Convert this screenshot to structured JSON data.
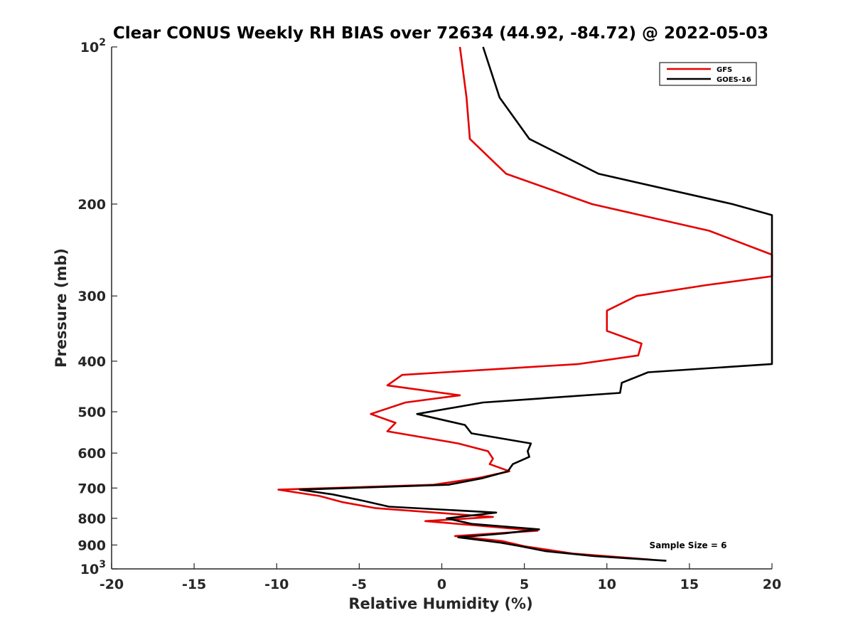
{
  "chart_data": {
    "type": "line",
    "title": "Clear CONUS Weekly RH BIAS over 72634 (44.92, -84.72) @ 2022-05-03",
    "xlabel": "Relative Humidity (%)",
    "ylabel": "Pressure (mb)",
    "xlim": [
      -20,
      20
    ],
    "ylim": [
      100,
      1000
    ],
    "y_scale": "log",
    "y_reversed": true,
    "grid": false,
    "x_ticks": [
      -20,
      -15,
      -10,
      -5,
      0,
      5,
      10,
      15,
      20
    ],
    "x_tick_labels": [
      "-20",
      "-15",
      "-10",
      "-5",
      "0",
      "5",
      "10",
      "15",
      "20"
    ],
    "y_ticks": [
      {
        "value": 100,
        "base": "10",
        "exp": "2"
      },
      {
        "value": 200,
        "label": "200"
      },
      {
        "value": 300,
        "label": "300"
      },
      {
        "value": 400,
        "label": "400"
      },
      {
        "value": 500,
        "label": "500"
      },
      {
        "value": 600,
        "label": "600"
      },
      {
        "value": 700,
        "label": "700"
      },
      {
        "value": 800,
        "label": "800"
      },
      {
        "value": 900,
        "label": "900"
      },
      {
        "value": 1000,
        "base": "10",
        "exp": "3"
      }
    ],
    "legend_position": "top-right",
    "annotation": "Sample Size = 6",
    "series": [
      {
        "name": "GFS",
        "color": "#e60000",
        "points": [
          [
            1.1,
            100
          ],
          [
            1.5,
            125
          ],
          [
            1.7,
            150
          ],
          [
            3.9,
            175
          ],
          [
            9.1,
            200
          ],
          [
            16.2,
            225
          ],
          [
            20.0,
            250
          ],
          [
            20.0,
            275
          ],
          [
            16.0,
            286
          ],
          [
            11.8,
            300
          ],
          [
            10.0,
            320
          ],
          [
            10.0,
            350
          ],
          [
            12.1,
            370
          ],
          [
            11.9,
            390
          ],
          [
            8.3,
            405
          ],
          [
            -2.4,
            425
          ],
          [
            -3.3,
            445
          ],
          [
            1.1,
            465
          ],
          [
            -2.2,
            480
          ],
          [
            -4.3,
            505
          ],
          [
            -2.8,
            525
          ],
          [
            -3.3,
            545
          ],
          [
            1.0,
            575
          ],
          [
            2.8,
            595
          ],
          [
            3.1,
            615
          ],
          [
            2.9,
            630
          ],
          [
            4.1,
            650
          ],
          [
            2.2,
            670
          ],
          [
            -0.5,
            690
          ],
          [
            -9.9,
            705
          ],
          [
            -7.4,
            725
          ],
          [
            -6.0,
            745
          ],
          [
            -4.0,
            765
          ],
          [
            -0.4,
            780
          ],
          [
            3.1,
            795
          ],
          [
            -1.0,
            810
          ],
          [
            2.0,
            825
          ],
          [
            5.8,
            845
          ],
          [
            0.8,
            865
          ],
          [
            3.7,
            885
          ],
          [
            5.0,
            905
          ],
          [
            8.0,
            935
          ],
          [
            12.7,
            960
          ]
        ]
      },
      {
        "name": "GOES-16",
        "color": "#000000",
        "points": [
          [
            2.5,
            100
          ],
          [
            3.5,
            125
          ],
          [
            5.3,
            150
          ],
          [
            9.5,
            175
          ],
          [
            17.6,
            200
          ],
          [
            20.0,
            210
          ],
          [
            20.0,
            405
          ],
          [
            12.5,
            420
          ],
          [
            10.9,
            440
          ],
          [
            10.8,
            460
          ],
          [
            2.5,
            480
          ],
          [
            -1.5,
            505
          ],
          [
            1.4,
            530
          ],
          [
            1.8,
            550
          ],
          [
            5.4,
            575
          ],
          [
            5.2,
            595
          ],
          [
            5.3,
            610
          ],
          [
            4.3,
            630
          ],
          [
            4.0,
            650
          ],
          [
            2.5,
            670
          ],
          [
            0.4,
            690
          ],
          [
            -8.6,
            705
          ],
          [
            -6.6,
            720
          ],
          [
            -4.8,
            740
          ],
          [
            -3.2,
            760
          ],
          [
            3.3,
            780
          ],
          [
            0.3,
            800
          ],
          [
            1.8,
            820
          ],
          [
            5.9,
            840
          ],
          [
            3.8,
            855
          ],
          [
            1.0,
            870
          ],
          [
            3.5,
            890
          ],
          [
            4.8,
            905
          ],
          [
            6.3,
            925
          ],
          [
            9.2,
            945
          ],
          [
            13.6,
            965
          ]
        ]
      }
    ]
  }
}
